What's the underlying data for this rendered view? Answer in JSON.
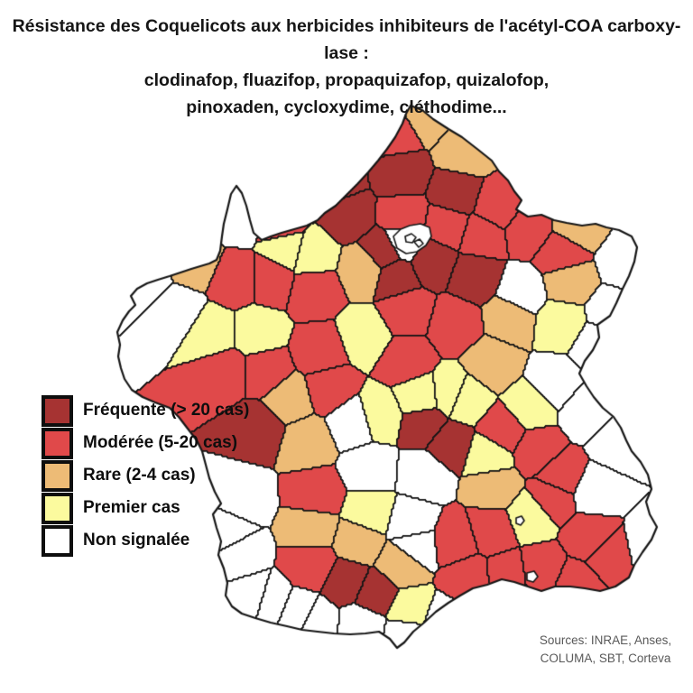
{
  "title": {
    "line1": "Résistance des Coquelicots aux herbicides inhibiteurs de  l'acétyl-COA carboxy-lase :",
    "line2": "clodinafop, fluazifop, propaquizafop, quizalofop,",
    "line3": "pinoxaden, cycloxydime, cléthodime..."
  },
  "legend": {
    "items": [
      {
        "key": "f",
        "label": "Fréquente (> 20 cas)",
        "color": "#A63332"
      },
      {
        "key": "m",
        "label": "Modérée (5-20 cas)",
        "color": "#E0494A"
      },
      {
        "key": "r",
        "label": "Rare (2-4 cas)",
        "color": "#EDBB76"
      },
      {
        "key": "p",
        "label": "Premier cas",
        "color": "#FBFA9E"
      },
      {
        "key": "n",
        "label": "Non signalée",
        "color": "#FFFFFF"
      }
    ],
    "border_color": "#0e0e0e"
  },
  "sources": {
    "line1": "Sources: INRAE, Anses,",
    "line2": "COLUMA, SBT, Corteva"
  },
  "chart_data": {
    "type": "choropleth_map",
    "title": "Résistance des Coquelicots aux herbicides inhibiteurs de l'acétyl-COA carboxy-lase",
    "region_shown": "France (départements)",
    "legend_position": "left",
    "categories": {
      "f": {
        "label": "Fréquente (> 20 cas)",
        "color": "#A63332"
      },
      "m": {
        "label": "Modérée (5-20 cas)",
        "color": "#E0494A"
      },
      "r": {
        "label": "Rare (2-4 cas)",
        "color": "#EDBB76"
      },
      "p": {
        "label": "Premier cas",
        "color": "#FBFA9E"
      },
      "n": {
        "label": "Non signalée",
        "color": "#FFFFFF"
      }
    },
    "border_color": "#161616",
    "cells": [
      [
        438,
        148,
        "m"
      ],
      [
        472,
        128,
        "r"
      ],
      [
        515,
        168,
        "r"
      ],
      [
        445,
        193,
        "f"
      ],
      [
        372,
        203,
        "f"
      ],
      [
        385,
        238,
        "f"
      ],
      [
        448,
        240,
        "m"
      ],
      [
        505,
        215,
        "f"
      ],
      [
        552,
        230,
        "m"
      ],
      [
        495,
        250,
        "m"
      ],
      [
        535,
        262,
        "m"
      ],
      [
        585,
        255,
        "m"
      ],
      [
        640,
        250,
        "r"
      ],
      [
        622,
        282,
        "m"
      ],
      [
        695,
        290,
        "n"
      ],
      [
        630,
        312,
        "r"
      ],
      [
        678,
        348,
        "n"
      ],
      [
        528,
        306,
        "f"
      ],
      [
        578,
        324,
        "n"
      ],
      [
        565,
        352,
        "r"
      ],
      [
        622,
        358,
        "p"
      ],
      [
        662,
        382,
        "n"
      ],
      [
        448,
        268,
        "n"
      ],
      [
        425,
        280,
        "f"
      ],
      [
        438,
        306,
        "f"
      ],
      [
        478,
        288,
        "f"
      ],
      [
        405,
        298,
        "r"
      ],
      [
        345,
        282,
        "p"
      ],
      [
        318,
        275,
        "p"
      ],
      [
        450,
        345,
        "m"
      ],
      [
        405,
        372,
        "p"
      ],
      [
        505,
        360,
        "m"
      ],
      [
        545,
        402,
        "r"
      ],
      [
        515,
        442,
        "p"
      ],
      [
        160,
        310,
        "n"
      ],
      [
        215,
        290,
        "r"
      ],
      [
        195,
        345,
        "n"
      ],
      [
        262,
        310,
        "m"
      ],
      [
        300,
        310,
        "m"
      ],
      [
        348,
        322,
        "m"
      ],
      [
        265,
        240,
        "n"
      ],
      [
        312,
        248,
        "m"
      ],
      [
        235,
        370,
        "p"
      ],
      [
        285,
        368,
        "p"
      ],
      [
        355,
        390,
        "m"
      ],
      [
        248,
        412,
        "m"
      ],
      [
        295,
        412,
        "m"
      ],
      [
        320,
        442,
        "r"
      ],
      [
        365,
        430,
        "m"
      ],
      [
        288,
        475,
        "f"
      ],
      [
        340,
        490,
        "r"
      ],
      [
        450,
        400,
        "m"
      ],
      [
        392,
        468,
        "n"
      ],
      [
        420,
        460,
        "p"
      ],
      [
        465,
        440,
        "p"
      ],
      [
        500,
        436,
        "p"
      ],
      [
        470,
        470,
        "f"
      ],
      [
        498,
        492,
        "f"
      ],
      [
        542,
        505,
        "p"
      ],
      [
        558,
        478,
        "m"
      ],
      [
        588,
        452,
        "p"
      ],
      [
        615,
        425,
        "n"
      ],
      [
        595,
        498,
        "m"
      ],
      [
        622,
        528,
        "m"
      ],
      [
        612,
        552,
        "m"
      ],
      [
        650,
        455,
        "n"
      ],
      [
        685,
        490,
        "n"
      ],
      [
        660,
        545,
        "n"
      ],
      [
        410,
        520,
        "n"
      ],
      [
        470,
        525,
        "n"
      ],
      [
        455,
        580,
        "n"
      ],
      [
        460,
        605,
        "n"
      ],
      [
        350,
        548,
        "m"
      ],
      [
        268,
        552,
        "n"
      ],
      [
        252,
        590,
        "n"
      ],
      [
        265,
        615,
        "n"
      ],
      [
        410,
        568,
        "p"
      ],
      [
        345,
        585,
        "r"
      ],
      [
        398,
        600,
        "r"
      ],
      [
        445,
        625,
        "r"
      ],
      [
        548,
        540,
        "r"
      ],
      [
        545,
        588,
        "m"
      ],
      [
        505,
        600,
        "m"
      ],
      [
        588,
        572,
        "p"
      ],
      [
        345,
        625,
        "m"
      ],
      [
        385,
        645,
        "f"
      ],
      [
        415,
        658,
        "f"
      ],
      [
        455,
        678,
        "p"
      ],
      [
        520,
        640,
        "m"
      ],
      [
        562,
        638,
        "m"
      ],
      [
        600,
        632,
        "m"
      ],
      [
        638,
        648,
        "m"
      ],
      [
        655,
        595,
        "m"
      ],
      [
        675,
        615,
        "m"
      ],
      [
        720,
        605,
        "n"
      ],
      [
        280,
        662,
        "n"
      ],
      [
        330,
        680,
        "n"
      ],
      [
        300,
        668,
        "n"
      ],
      [
        350,
        690,
        "n"
      ],
      [
        400,
        692,
        "n"
      ],
      [
        452,
        702,
        "n"
      ],
      [
        490,
        690,
        "n"
      ]
    ],
    "outline": [
      [
        455,
        117
      ],
      [
        468,
        122
      ],
      [
        480,
        132
      ],
      [
        497,
        143
      ],
      [
        512,
        152
      ],
      [
        530,
        166
      ],
      [
        545,
        178
      ],
      [
        553,
        190
      ],
      [
        563,
        200
      ],
      [
        570,
        212
      ],
      [
        578,
        222
      ],
      [
        572,
        232
      ],
      [
        585,
        240
      ],
      [
        600,
        238
      ],
      [
        614,
        244
      ],
      [
        628,
        247
      ],
      [
        645,
        250
      ],
      [
        660,
        248
      ],
      [
        672,
        252
      ],
      [
        686,
        255
      ],
      [
        700,
        262
      ],
      [
        706,
        274
      ],
      [
        703,
        290
      ],
      [
        697,
        306
      ],
      [
        690,
        320
      ],
      [
        683,
        336
      ],
      [
        676,
        350
      ],
      [
        662,
        360
      ],
      [
        664,
        374
      ],
      [
        657,
        388
      ],
      [
        648,
        400
      ],
      [
        642,
        414
      ],
      [
        650,
        428
      ],
      [
        658,
        440
      ],
      [
        668,
        452
      ],
      [
        680,
        462
      ],
      [
        688,
        474
      ],
      [
        694,
        488
      ],
      [
        700,
        500
      ],
      [
        710,
        512
      ],
      [
        718,
        526
      ],
      [
        722,
        542
      ],
      [
        716,
        556
      ],
      [
        720,
        570
      ],
      [
        728,
        584
      ],
      [
        722,
        598
      ],
      [
        712,
        612
      ],
      [
        703,
        626
      ],
      [
        697,
        640
      ],
      [
        682,
        650
      ],
      [
        665,
        655
      ],
      [
        648,
        652
      ],
      [
        632,
        650
      ],
      [
        615,
        650
      ],
      [
        600,
        655
      ],
      [
        585,
        650
      ],
      [
        570,
        645
      ],
      [
        556,
        642
      ],
      [
        540,
        648
      ],
      [
        524,
        652
      ],
      [
        510,
        660
      ],
      [
        497,
        668
      ],
      [
        483,
        678
      ],
      [
        470,
        690
      ],
      [
        458,
        700
      ],
      [
        448,
        712
      ],
      [
        440,
        718
      ],
      [
        432,
        708
      ],
      [
        420,
        700
      ],
      [
        405,
        702
      ],
      [
        388,
        703
      ],
      [
        370,
        702
      ],
      [
        352,
        700
      ],
      [
        335,
        698
      ],
      [
        318,
        694
      ],
      [
        300,
        690
      ],
      [
        283,
        685
      ],
      [
        268,
        680
      ],
      [
        257,
        672
      ],
      [
        250,
        660
      ],
      [
        252,
        646
      ],
      [
        248,
        630
      ],
      [
        242,
        615
      ],
      [
        245,
        600
      ],
      [
        240,
        585
      ],
      [
        236,
        570
      ],
      [
        245,
        558
      ],
      [
        238,
        545
      ],
      [
        232,
        530
      ],
      [
        228,
        515
      ],
      [
        224,
        500
      ],
      [
        218,
        488
      ],
      [
        208,
        475
      ],
      [
        198,
        462
      ],
      [
        188,
        452
      ],
      [
        172,
        446
      ],
      [
        158,
        440
      ],
      [
        146,
        432
      ],
      [
        138,
        420
      ],
      [
        134,
        408
      ],
      [
        131,
        395
      ],
      [
        133,
        382
      ],
      [
        130,
        368
      ],
      [
        136,
        355
      ],
      [
        143,
        345
      ],
      [
        150,
        338
      ],
      [
        145,
        328
      ],
      [
        152,
        320
      ],
      [
        163,
        314
      ],
      [
        175,
        310
      ],
      [
        188,
        306
      ],
      [
        200,
        302
      ],
      [
        212,
        298
      ],
      [
        222,
        295
      ],
      [
        232,
        292
      ],
      [
        240,
        288
      ],
      [
        244,
        278
      ],
      [
        246,
        262
      ],
      [
        248,
        248
      ],
      [
        252,
        232
      ],
      [
        256,
        215
      ],
      [
        262,
        206
      ],
      [
        268,
        214
      ],
      [
        273,
        228
      ],
      [
        277,
        244
      ],
      [
        281,
        258
      ],
      [
        290,
        266
      ],
      [
        300,
        262
      ],
      [
        312,
        258
      ],
      [
        326,
        254
      ],
      [
        340,
        250
      ],
      [
        352,
        244
      ],
      [
        360,
        236
      ],
      [
        372,
        228
      ],
      [
        384,
        216
      ],
      [
        396,
        204
      ],
      [
        408,
        191
      ],
      [
        419,
        178
      ],
      [
        429,
        165
      ],
      [
        438,
        152
      ],
      [
        446,
        137
      ],
      [
        450,
        126
      ]
    ],
    "paris_inset": {
      "outer": [
        [
          436,
          262
        ],
        [
          444,
          254
        ],
        [
          454,
          250
        ],
        [
          466,
          248
        ],
        [
          476,
          252
        ],
        [
          478,
          262
        ],
        [
          472,
          272
        ],
        [
          462,
          279
        ],
        [
          450,
          281
        ],
        [
          440,
          275
        ]
      ],
      "inner": [
        [
          [
            449,
            262
          ],
          [
            456,
            259
          ],
          [
            461,
            263
          ],
          [
            457,
            269
          ],
          [
            450,
            268
          ]
        ],
        [
          [
            459,
            268
          ],
          [
            465,
            265
          ],
          [
            469,
            270
          ],
          [
            464,
            274
          ]
        ]
      ]
    },
    "enclaves": [
      [
        [
          572,
          574
        ],
        [
          578,
          572
        ],
        [
          581,
          577
        ],
        [
          577,
          582
        ],
        [
          572,
          580
        ]
      ],
      [
        [
          584,
          635
        ],
        [
          592,
          633
        ],
        [
          596,
          639
        ],
        [
          591,
          645
        ],
        [
          584,
          643
        ]
      ]
    ]
  }
}
